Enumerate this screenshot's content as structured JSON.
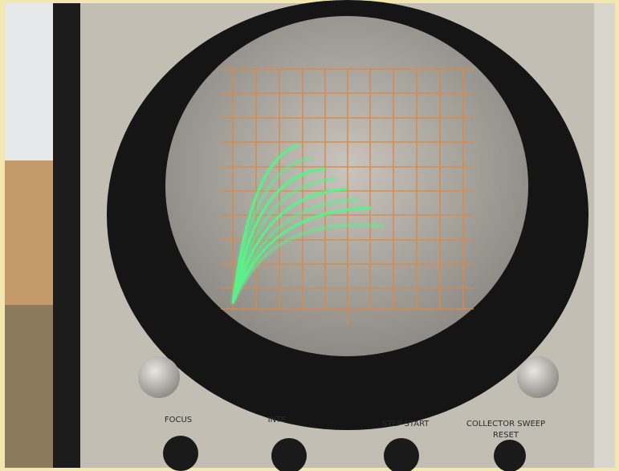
{
  "labels": [
    "FOCUS",
    "INTE",
    "STEP START",
    "COLLECTOR SWEEP",
    "RESET"
  ]
}
